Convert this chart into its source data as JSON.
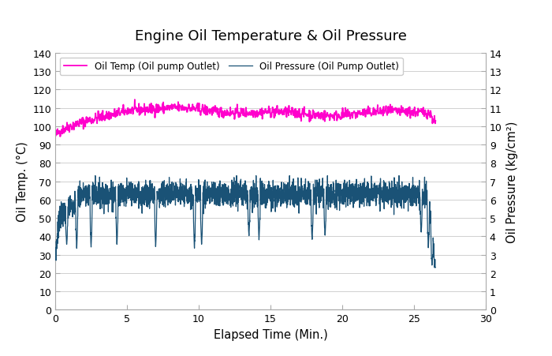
{
  "title": "Engine Oil Temperature & Oil Pressure",
  "xlabel": "Elapsed Time (Min.)",
  "ylabel_left": "Oil Temp. (°C)",
  "ylabel_right": "Oil Pressure (kg/cm²)",
  "legend_temp": "Oil Temp (Oil pump Outlet)",
  "legend_pressure": "Oil Pressure (Oil Pump Outlet)",
  "temp_color": "#FF00CC",
  "pressure_color": "#1A5276",
  "xlim": [
    0,
    30
  ],
  "ylim_left": [
    0,
    140
  ],
  "ylim_right": [
    0,
    14
  ],
  "yticks_left": [
    0,
    10,
    20,
    30,
    40,
    50,
    60,
    70,
    80,
    90,
    100,
    110,
    120,
    130,
    140
  ],
  "yticks_right": [
    0,
    1,
    2,
    3,
    4,
    5,
    6,
    7,
    8,
    9,
    10,
    11,
    12,
    13,
    14
  ],
  "xticks": [
    0,
    5,
    10,
    15,
    20,
    25,
    30
  ],
  "total_duration_min": 26.5,
  "background_color": "#ffffff",
  "grid_color": "#d0d0d0"
}
